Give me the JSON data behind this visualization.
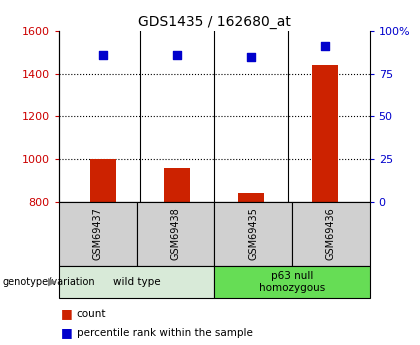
{
  "title": "GDS1435 / 162680_at",
  "samples": [
    "GSM69437",
    "GSM69438",
    "GSM69435",
    "GSM69436"
  ],
  "counts": [
    1000,
    960,
    840,
    1440
  ],
  "percentiles": [
    86,
    86,
    85,
    91
  ],
  "ylim_left": [
    800,
    1600
  ],
  "ylim_right": [
    0,
    100
  ],
  "yticks_left": [
    800,
    1000,
    1200,
    1400,
    1600
  ],
  "yticks_right": [
    0,
    25,
    50,
    75,
    100
  ],
  "ytick_labels_right": [
    "0",
    "25",
    "50",
    "75",
    "100%"
  ],
  "groups": [
    {
      "label": "wild type",
      "indices": [
        0,
        1
      ],
      "color": "#c8e6c8"
    },
    {
      "label": "p63 null\nhomozygous",
      "indices": [
        2,
        3
      ],
      "color": "#66dd66"
    }
  ],
  "bar_color": "#cc2200",
  "scatter_color": "#0000cc",
  "bar_width": 0.35,
  "bg_color": "#ffffff",
  "plot_bg": "#ffffff",
  "label_count": "count",
  "label_percentile": "percentile rank within the sample",
  "genotype_label": "genotype/variation",
  "left_tick_color": "#cc0000",
  "right_tick_color": "#0000cc",
  "sample_box_color": "#d0d0d0",
  "wild_type_color": "#d8ead8",
  "p63_color": "#66dd55"
}
